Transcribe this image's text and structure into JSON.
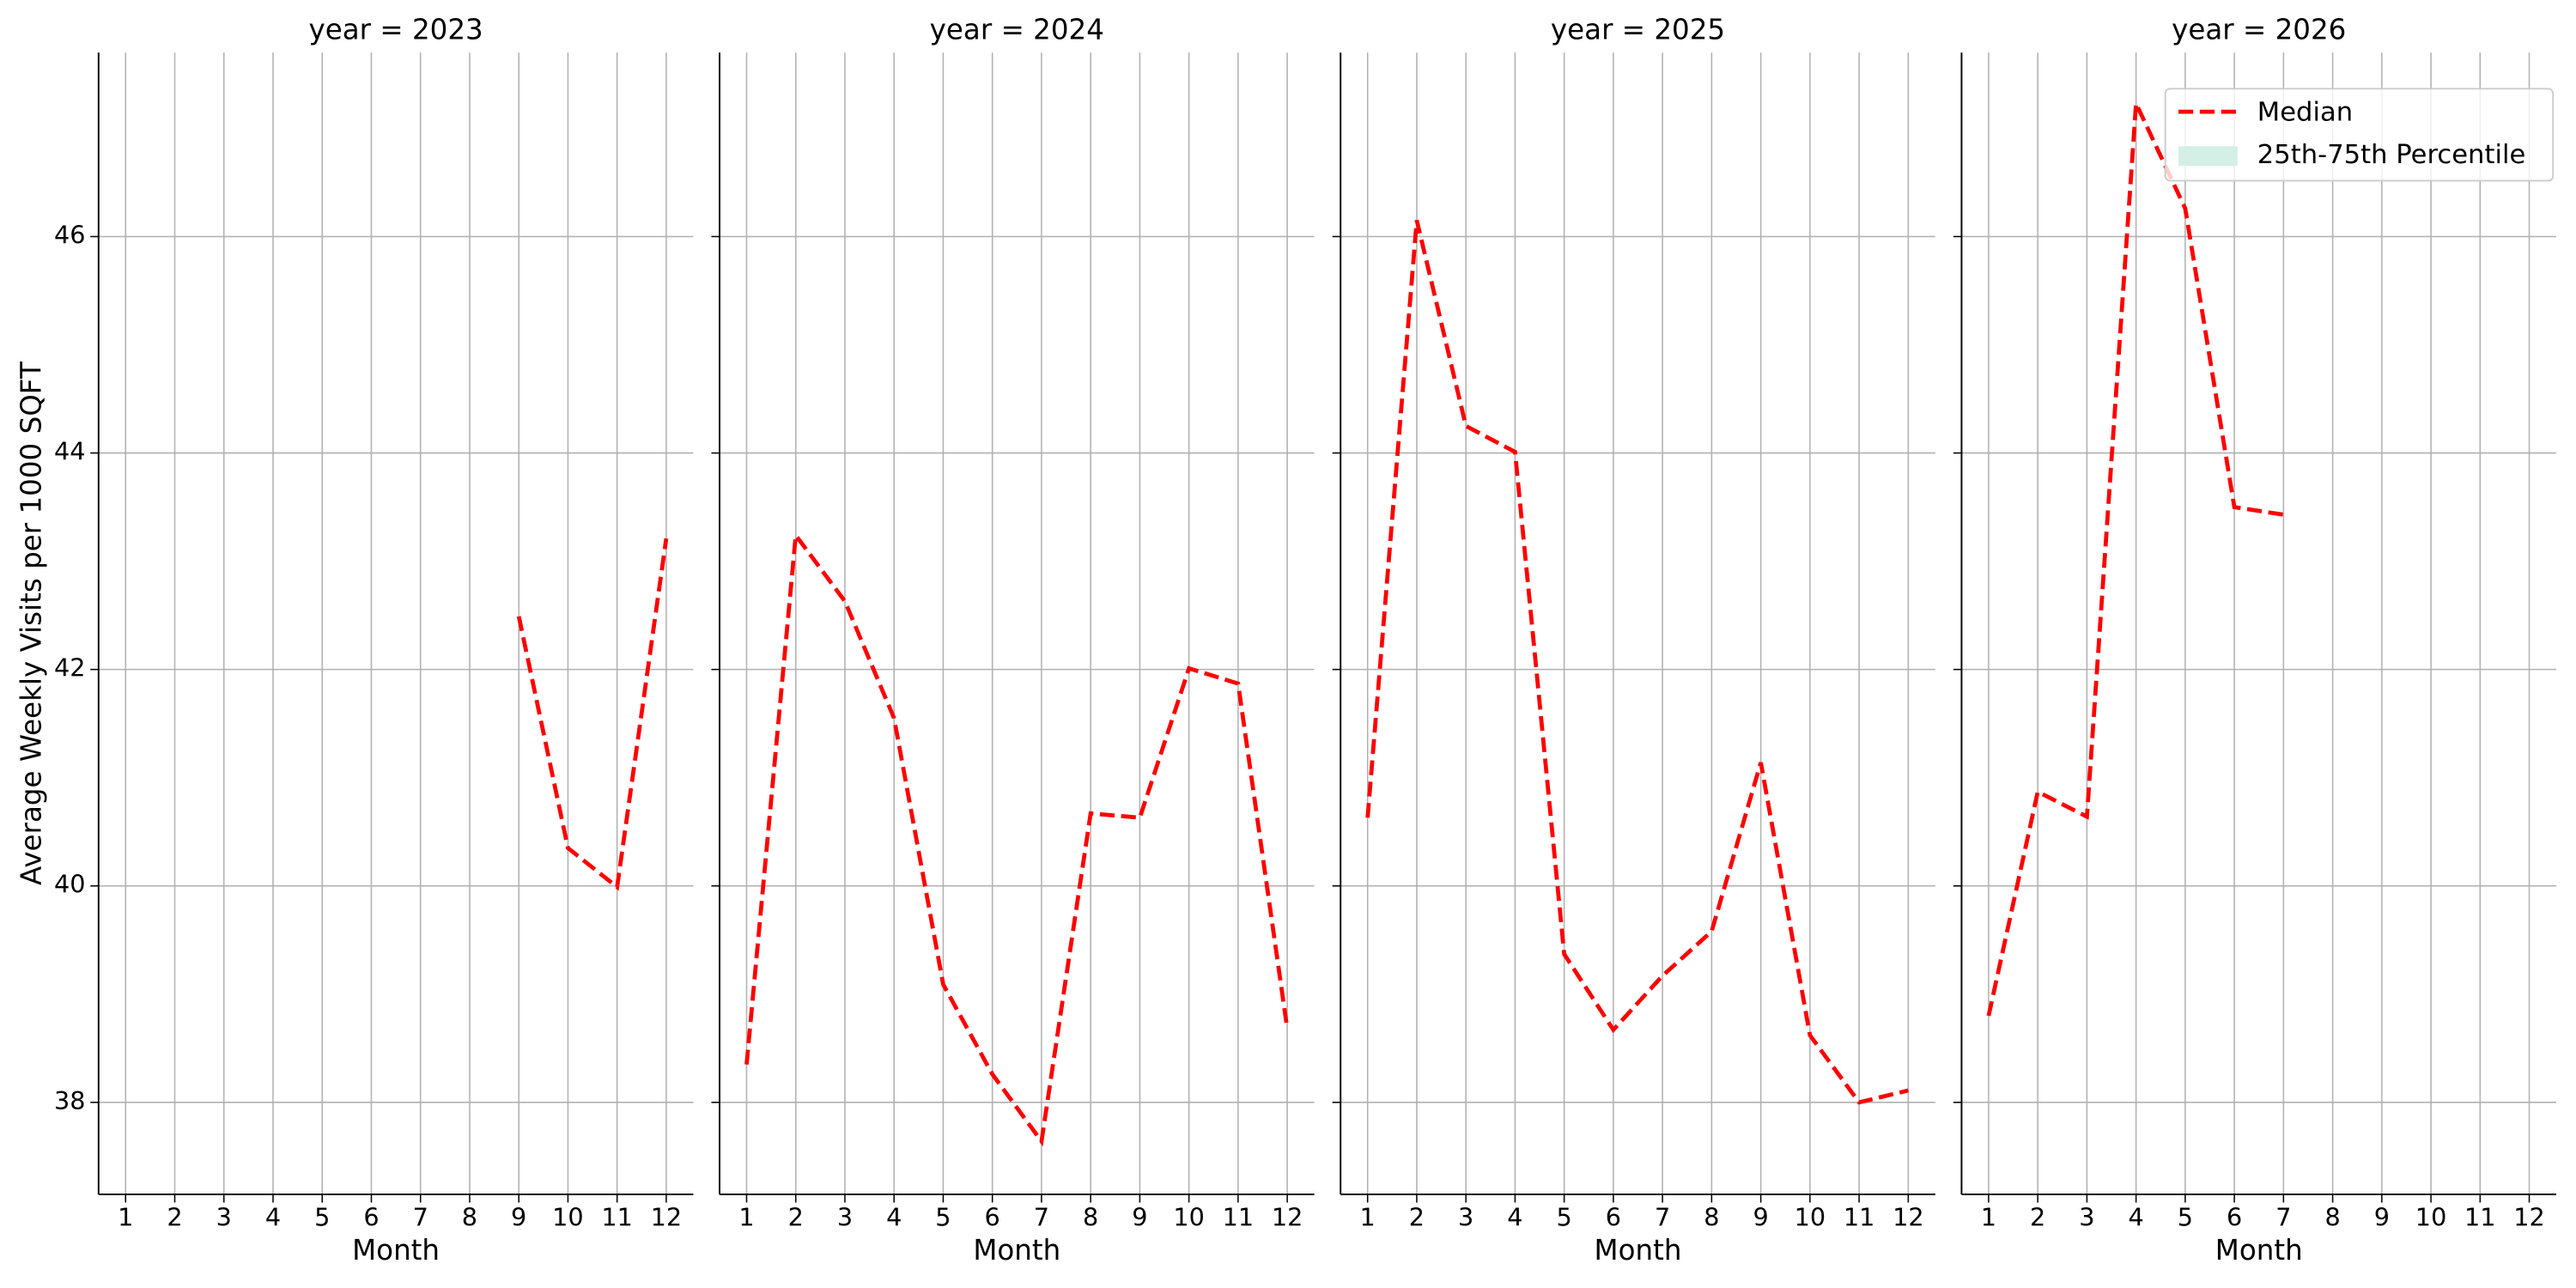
{
  "chart_data": [
    {
      "type": "line",
      "title": "year = 2023",
      "ylabel": "Average Weekly Visits per 1000 SQFT",
      "xlabel": "Month",
      "x": [
        1,
        2,
        3,
        4,
        5,
        6,
        7,
        8,
        9,
        10,
        11,
        12
      ],
      "series": [
        {
          "name": "Median",
          "color": "#ff0000",
          "values": [
            null,
            null,
            null,
            null,
            null,
            null,
            null,
            null,
            42.49,
            40.35,
            39.99,
            43.21
          ]
        }
      ],
      "xlim": [
        0.45,
        12.55
      ],
      "ylim": [
        37.15,
        47.7
      ],
      "xticks": [
        1,
        2,
        3,
        4,
        5,
        6,
        7,
        8,
        9,
        10,
        11,
        12
      ],
      "yticks": [
        38,
        40,
        42,
        44,
        46
      ],
      "grid": true
    },
    {
      "type": "line",
      "title": "year = 2024",
      "xlabel": "Month",
      "x": [
        1,
        2,
        3,
        4,
        5,
        6,
        7,
        8,
        9,
        10,
        11,
        12
      ],
      "series": [
        {
          "name": "Median",
          "color": "#ff0000",
          "values": [
            38.35,
            43.24,
            42.63,
            41.55,
            39.09,
            38.26,
            37.64,
            40.67,
            40.63,
            42.01,
            41.87,
            38.68
          ]
        }
      ],
      "xlim": [
        0.45,
        12.55
      ],
      "ylim": [
        37.15,
        47.7
      ],
      "xticks": [
        1,
        2,
        3,
        4,
        5,
        6,
        7,
        8,
        9,
        10,
        11,
        12
      ],
      "yticks": [
        38,
        40,
        42,
        44,
        46
      ],
      "grid": true
    },
    {
      "type": "line",
      "title": "year = 2025",
      "xlabel": "Month",
      "x": [
        1,
        2,
        3,
        4,
        5,
        6,
        7,
        8,
        9,
        10,
        11,
        12
      ],
      "series": [
        {
          "name": "Median",
          "color": "#ff0000",
          "values": [
            40.63,
            46.15,
            44.25,
            44.01,
            39.37,
            38.67,
            39.17,
            39.58,
            41.14,
            38.62,
            38.0,
            38.11
          ]
        }
      ],
      "xlim": [
        0.45,
        12.55
      ],
      "ylim": [
        37.15,
        47.7
      ],
      "xticks": [
        1,
        2,
        3,
        4,
        5,
        6,
        7,
        8,
        9,
        10,
        11,
        12
      ],
      "yticks": [
        38,
        40,
        42,
        44,
        46
      ],
      "grid": true
    },
    {
      "type": "line",
      "title": "year = 2026",
      "xlabel": "Month",
      "x": [
        1,
        2,
        3,
        4,
        5,
        6,
        7,
        8,
        9,
        10,
        11,
        12
      ],
      "series": [
        {
          "name": "Median",
          "color": "#ff0000",
          "values": [
            38.8,
            40.87,
            40.64,
            47.23,
            46.26,
            43.5,
            43.43,
            null,
            null,
            null,
            null,
            null
          ]
        }
      ],
      "band": {
        "name": "25th-75th Percentile",
        "color": "#d4efe6"
      },
      "legend": "upper right",
      "xlim": [
        0.45,
        12.55
      ],
      "ylim": [
        37.15,
        47.7
      ],
      "xticks": [
        1,
        2,
        3,
        4,
        5,
        6,
        7,
        8,
        9,
        10,
        11,
        12
      ],
      "yticks": [
        38,
        40,
        42,
        44,
        46
      ],
      "grid": true
    }
  ]
}
